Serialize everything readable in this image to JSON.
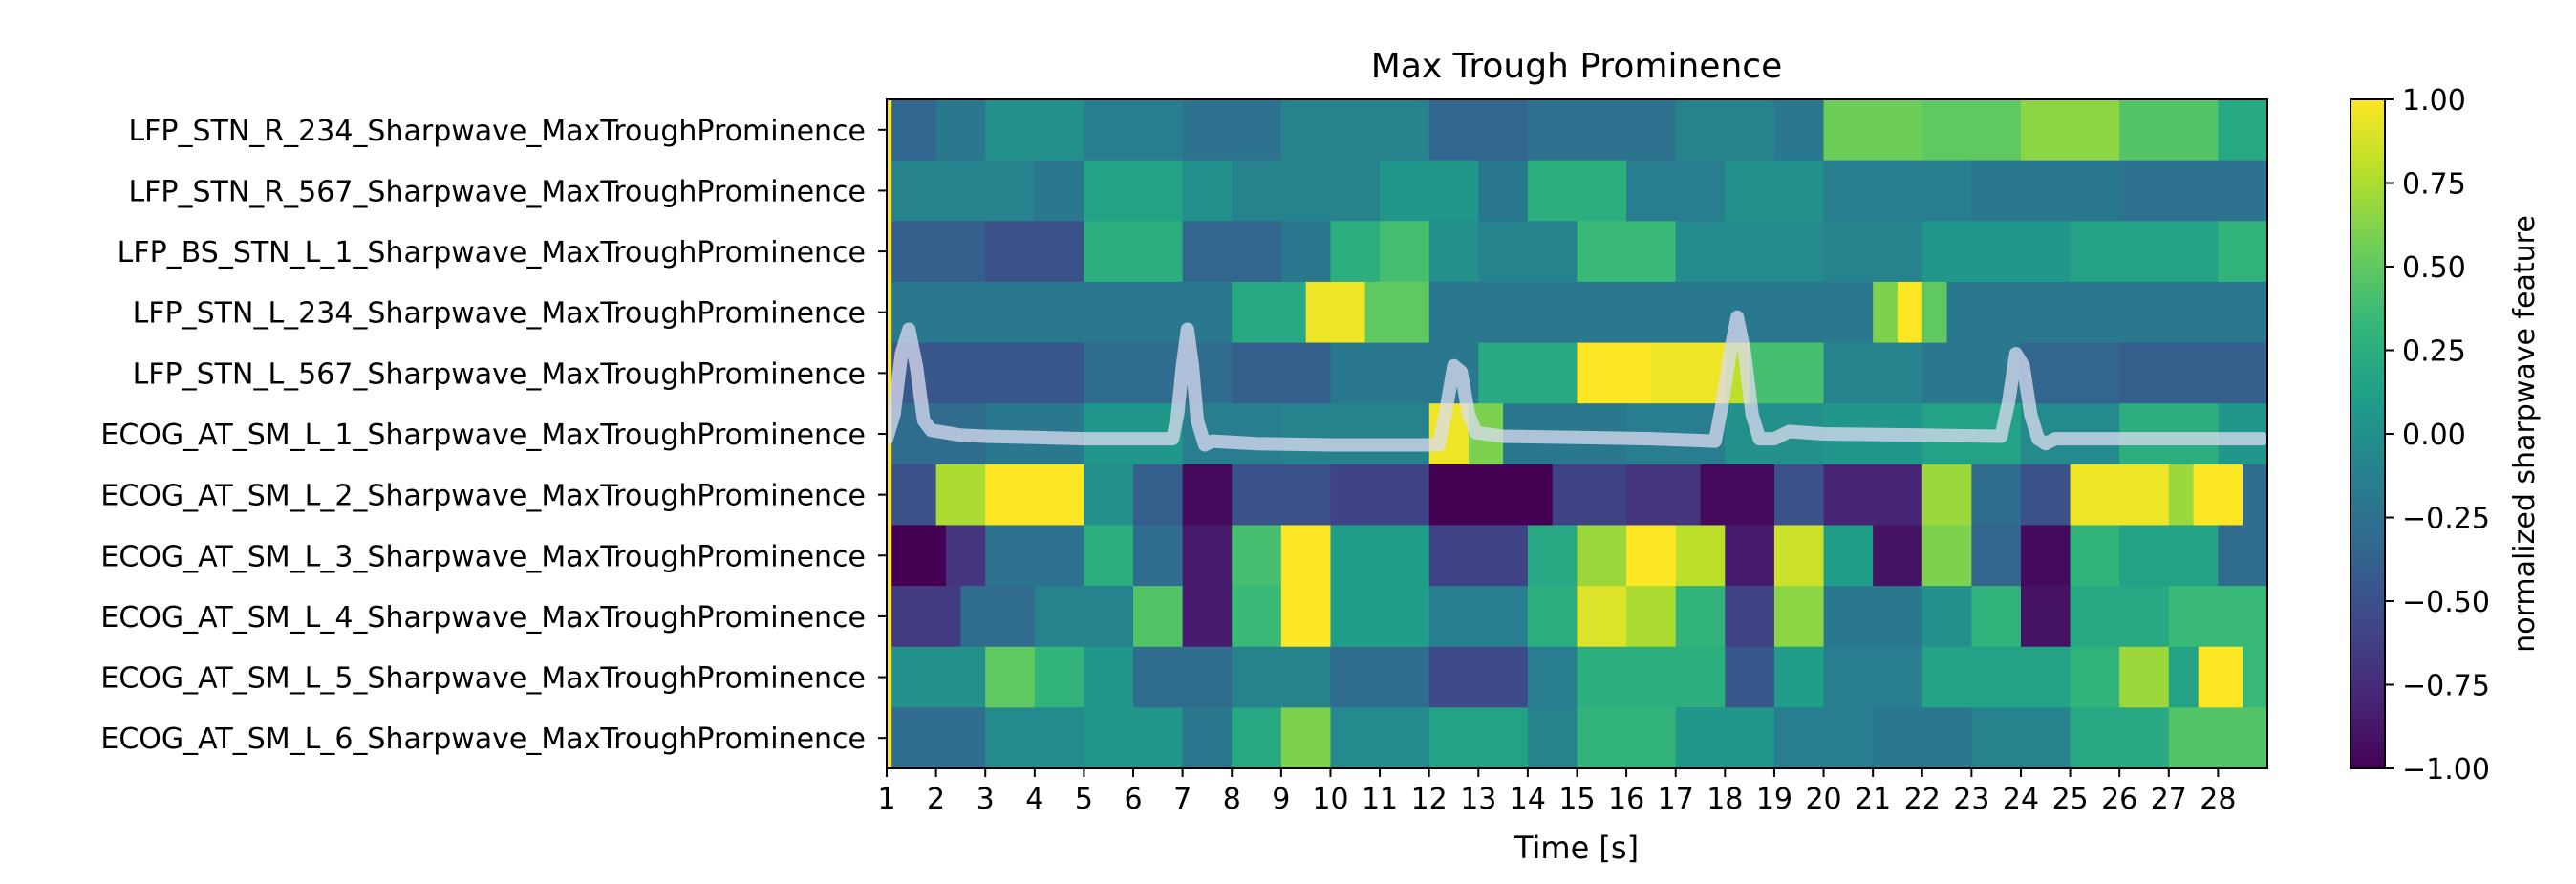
{
  "chart_data": {
    "type": "heatmap",
    "title": "Max Trough Prominence",
    "xlabel": "Time [s]",
    "ylabel": "",
    "colorbar_label": "normalized sharpwave feature",
    "colormap": "viridis",
    "vmin": -1.0,
    "vmax": 1.0,
    "xlim": [
      1,
      29
    ],
    "x_ticks": [
      1,
      2,
      3,
      4,
      5,
      6,
      7,
      8,
      9,
      10,
      11,
      12,
      13,
      14,
      15,
      16,
      17,
      18,
      19,
      20,
      21,
      22,
      23,
      24,
      25,
      26,
      27,
      28
    ],
    "colorbar_ticks": [
      1.0,
      0.75,
      0.5,
      0.25,
      0.0,
      -0.25,
      -0.5,
      -0.75,
      -1.0
    ],
    "colorbar_tick_labels": [
      "1.00",
      "0.75",
      "0.50",
      "0.25",
      "0.00",
      "−0.25",
      "−0.50",
      "−0.75",
      "−1.00"
    ],
    "rows": [
      "LFP_STN_R_234_Sharpwave_MaxTroughProminence",
      "LFP_STN_R_567_Sharpwave_MaxTroughProminence",
      "LFP_BS_STN_L_1_Sharpwave_MaxTroughProminence",
      "LFP_STN_L_234_Sharpwave_MaxTroughProminence",
      "LFP_STN_L_567_Sharpwave_MaxTroughProminence",
      "ECOG_AT_SM_L_1_Sharpwave_MaxTroughProminence",
      "ECOG_AT_SM_L_2_Sharpwave_MaxTroughProminence",
      "ECOG_AT_SM_L_3_Sharpwave_MaxTroughProminence",
      "ECOG_AT_SM_L_4_Sharpwave_MaxTroughProminence",
      "ECOG_AT_SM_L_5_Sharpwave_MaxTroughProminence",
      "ECOG_AT_SM_L_6_Sharpwave_MaxTroughProminence"
    ],
    "segments": [
      [
        [
          1,
          1.1,
          1.0
        ],
        [
          1.1,
          2,
          -0.35
        ],
        [
          2,
          3,
          -0.2
        ],
        [
          3,
          5,
          0.0
        ],
        [
          5,
          7,
          -0.15
        ],
        [
          7,
          9,
          -0.25
        ],
        [
          9,
          12,
          -0.1
        ],
        [
          12,
          14,
          -0.35
        ],
        [
          14,
          17,
          -0.25
        ],
        [
          17,
          19,
          -0.1
        ],
        [
          19,
          20,
          -0.2
        ],
        [
          20,
          22,
          0.55
        ],
        [
          22,
          24,
          0.5
        ],
        [
          24,
          26,
          0.65
        ],
        [
          26,
          28,
          0.45
        ],
        [
          28,
          29,
          0.2
        ]
      ],
      [
        [
          1,
          1.1,
          1.0
        ],
        [
          1.1,
          4,
          -0.1
        ],
        [
          4,
          5,
          -0.2
        ],
        [
          5,
          7,
          0.15
        ],
        [
          7,
          8,
          0.0
        ],
        [
          8,
          11,
          -0.1
        ],
        [
          11,
          13,
          0.05
        ],
        [
          13,
          14,
          -0.2
        ],
        [
          14,
          16,
          0.25
        ],
        [
          16,
          18,
          -0.15
        ],
        [
          18,
          20,
          0.0
        ],
        [
          20,
          23,
          -0.15
        ],
        [
          23,
          26,
          -0.2
        ],
        [
          26,
          29,
          -0.25
        ]
      ],
      [
        [
          1,
          1.1,
          1.0
        ],
        [
          1.1,
          3,
          -0.4
        ],
        [
          3,
          5,
          -0.5
        ],
        [
          5,
          7,
          0.25
        ],
        [
          7,
          9,
          -0.35
        ],
        [
          9,
          10,
          -0.2
        ],
        [
          10,
          11,
          0.25
        ],
        [
          11,
          12,
          0.4
        ],
        [
          12,
          13,
          0.0
        ],
        [
          13,
          15,
          -0.1
        ],
        [
          15,
          17,
          0.35
        ],
        [
          17,
          20,
          -0.05
        ],
        [
          20,
          22,
          -0.1
        ],
        [
          22,
          25,
          0.05
        ],
        [
          25,
          28,
          0.15
        ],
        [
          28,
          29,
          0.3
        ]
      ],
      [
        [
          1,
          1.1,
          1.0
        ],
        [
          1.1,
          8,
          -0.2
        ],
        [
          8,
          9.5,
          0.2
        ],
        [
          9.5,
          10.7,
          0.95
        ],
        [
          10.7,
          12,
          0.5
        ],
        [
          12,
          21,
          -0.2
        ],
        [
          21,
          21.5,
          0.6
        ],
        [
          21.5,
          22,
          1.0
        ],
        [
          22,
          22.5,
          0.5
        ],
        [
          22.5,
          29,
          -0.2
        ]
      ],
      [
        [
          1,
          1.1,
          1.0
        ],
        [
          1.1,
          5,
          -0.45
        ],
        [
          5,
          8,
          -0.3
        ],
        [
          8,
          10,
          -0.4
        ],
        [
          10,
          13,
          -0.2
        ],
        [
          13,
          15,
          0.2
        ],
        [
          15,
          16.5,
          1.0
        ],
        [
          16.5,
          18,
          0.95
        ],
        [
          18,
          18.5,
          0.8
        ],
        [
          18.5,
          20,
          0.4
        ],
        [
          20,
          22,
          -0.1
        ],
        [
          22,
          24,
          -0.2
        ],
        [
          24,
          26,
          -0.35
        ],
        [
          26,
          29,
          -0.4
        ]
      ],
      [
        [
          1,
          1.1,
          1.0
        ],
        [
          1.1,
          3,
          -0.3
        ],
        [
          3,
          5,
          -0.2
        ],
        [
          5,
          7,
          0.05
        ],
        [
          7,
          9,
          -0.15
        ],
        [
          9,
          12,
          -0.1
        ],
        [
          12,
          12.8,
          0.95
        ],
        [
          12.8,
          13.5,
          0.6
        ],
        [
          13.5,
          16,
          -0.2
        ],
        [
          16,
          18,
          -0.15
        ],
        [
          18,
          20,
          0.0
        ],
        [
          20,
          22,
          0.05
        ],
        [
          22,
          24,
          0.15
        ],
        [
          24,
          26,
          -0.05
        ],
        [
          26,
          28,
          0.25
        ],
        [
          28,
          29,
          0.05
        ]
      ],
      [
        [
          1,
          1.1,
          1.0
        ],
        [
          1.1,
          2,
          -0.5
        ],
        [
          2,
          3,
          0.75
        ],
        [
          3,
          5,
          1.0
        ],
        [
          5,
          6,
          0.0
        ],
        [
          6,
          7,
          -0.4
        ],
        [
          7,
          8,
          -0.95
        ],
        [
          8,
          10,
          -0.5
        ],
        [
          10,
          12,
          -0.6
        ],
        [
          12,
          14.5,
          -1.0
        ],
        [
          14.5,
          16,
          -0.6
        ],
        [
          16,
          17.5,
          -0.7
        ],
        [
          17.5,
          19,
          -0.95
        ],
        [
          19,
          20,
          -0.5
        ],
        [
          20,
          22,
          -0.8
        ],
        [
          22,
          23,
          0.7
        ],
        [
          23,
          24,
          -0.3
        ],
        [
          24,
          25,
          -0.5
        ],
        [
          25,
          27,
          0.95
        ],
        [
          27,
          27.5,
          0.7
        ],
        [
          27.5,
          28.5,
          1.0
        ],
        [
          28.5,
          29,
          -0.3
        ]
      ],
      [
        [
          1,
          1.1,
          1.0
        ],
        [
          1.1,
          2.2,
          -1.0
        ],
        [
          2.2,
          3,
          -0.7
        ],
        [
          3,
          5,
          -0.25
        ],
        [
          5,
          6,
          0.25
        ],
        [
          6,
          7,
          -0.3
        ],
        [
          7,
          8,
          -0.85
        ],
        [
          8,
          9,
          0.4
        ],
        [
          9,
          10,
          1.0
        ],
        [
          10,
          12,
          0.1
        ],
        [
          12,
          14,
          -0.6
        ],
        [
          14,
          15,
          0.2
        ],
        [
          15,
          16,
          0.7
        ],
        [
          16,
          17,
          1.0
        ],
        [
          17,
          18,
          0.8
        ],
        [
          18,
          19,
          -0.85
        ],
        [
          19,
          20,
          0.85
        ],
        [
          20,
          21,
          0.1
        ],
        [
          21,
          22,
          -0.9
        ],
        [
          22,
          23,
          0.6
        ],
        [
          23,
          24,
          -0.35
        ],
        [
          24,
          25,
          -0.95
        ],
        [
          25,
          26,
          0.3
        ],
        [
          26,
          28,
          0.15
        ],
        [
          28,
          29,
          -0.3
        ]
      ],
      [
        [
          1,
          1.1,
          1.0
        ],
        [
          1.1,
          2.5,
          -0.65
        ],
        [
          2.5,
          4,
          -0.3
        ],
        [
          4,
          6,
          -0.1
        ],
        [
          6,
          7,
          0.45
        ],
        [
          7,
          8,
          -0.85
        ],
        [
          8,
          9,
          0.35
        ],
        [
          9,
          10,
          1.0
        ],
        [
          10,
          12,
          0.1
        ],
        [
          12,
          14,
          -0.15
        ],
        [
          14,
          15,
          0.25
        ],
        [
          15,
          16,
          0.9
        ],
        [
          16,
          17,
          0.75
        ],
        [
          17,
          18,
          0.3
        ],
        [
          18,
          19,
          -0.6
        ],
        [
          19,
          20,
          0.65
        ],
        [
          20,
          22,
          -0.2
        ],
        [
          22,
          23,
          0.0
        ],
        [
          23,
          24,
          0.3
        ],
        [
          24,
          25,
          -0.9
        ],
        [
          25,
          27,
          0.2
        ],
        [
          27,
          29,
          0.35
        ]
      ],
      [
        [
          1,
          1.1,
          1.0
        ],
        [
          1.1,
          3,
          0.0
        ],
        [
          3,
          4,
          0.5
        ],
        [
          4,
          5,
          0.3
        ],
        [
          5,
          6,
          0.05
        ],
        [
          6,
          8,
          -0.3
        ],
        [
          8,
          10,
          -0.1
        ],
        [
          10,
          12,
          -0.3
        ],
        [
          12,
          14,
          -0.55
        ],
        [
          14,
          15,
          -0.15
        ],
        [
          15,
          18,
          0.25
        ],
        [
          18,
          19,
          -0.45
        ],
        [
          19,
          20,
          0.1
        ],
        [
          20,
          22,
          -0.15
        ],
        [
          22,
          25,
          0.15
        ],
        [
          25,
          26,
          0.3
        ],
        [
          26,
          27,
          0.7
        ],
        [
          27,
          27.6,
          0.15
        ],
        [
          27.6,
          28.5,
          1.0
        ],
        [
          28.5,
          29,
          0.35
        ]
      ],
      [
        [
          1,
          1.1,
          1.0
        ],
        [
          1.1,
          3,
          -0.3
        ],
        [
          3,
          5,
          -0.05
        ],
        [
          5,
          7,
          0.05
        ],
        [
          7,
          8,
          -0.2
        ],
        [
          8,
          9,
          0.2
        ],
        [
          9,
          10,
          0.6
        ],
        [
          10,
          12,
          -0.05
        ],
        [
          12,
          14,
          0.15
        ],
        [
          14,
          15,
          -0.1
        ],
        [
          15,
          17,
          0.3
        ],
        [
          17,
          19,
          0.05
        ],
        [
          19,
          21,
          -0.15
        ],
        [
          21,
          23,
          -0.2
        ],
        [
          23,
          25,
          -0.1
        ],
        [
          25,
          27,
          0.2
        ],
        [
          27,
          29,
          0.45
        ]
      ]
    ],
    "overlay": {
      "name": "",
      "color": "#dcdcf0",
      "baseline": -0.06,
      "points": [
        [
          1.0,
          -0.1
        ],
        [
          1.15,
          0.1
        ],
        [
          1.3,
          0.6
        ],
        [
          1.45,
          0.8
        ],
        [
          1.6,
          0.5
        ],
        [
          1.75,
          0.05
        ],
        [
          1.9,
          -0.03
        ],
        [
          2.5,
          -0.07
        ],
        [
          3.0,
          -0.08
        ],
        [
          4.0,
          -0.09
        ],
        [
          5.0,
          -0.1
        ],
        [
          6.0,
          -0.1
        ],
        [
          6.8,
          -0.1
        ],
        [
          6.9,
          0.1
        ],
        [
          7.0,
          0.5
        ],
        [
          7.1,
          0.8
        ],
        [
          7.2,
          0.5
        ],
        [
          7.3,
          0.05
        ],
        [
          7.45,
          -0.15
        ],
        [
          7.6,
          -0.12
        ],
        [
          8.5,
          -0.14
        ],
        [
          10,
          -0.15
        ],
        [
          11.5,
          -0.15
        ],
        [
          12.2,
          -0.15
        ],
        [
          12.35,
          0.15
        ],
        [
          12.5,
          0.5
        ],
        [
          12.65,
          0.45
        ],
        [
          12.8,
          0.1
        ],
        [
          12.95,
          -0.05
        ],
        [
          13.5,
          -0.08
        ],
        [
          15,
          -0.09
        ],
        [
          16.5,
          -0.1
        ],
        [
          17.8,
          -0.12
        ],
        [
          17.95,
          0.2
        ],
        [
          18.1,
          0.6
        ],
        [
          18.25,
          0.9
        ],
        [
          18.4,
          0.6
        ],
        [
          18.55,
          0.1
        ],
        [
          18.7,
          -0.1
        ],
        [
          19,
          -0.1
        ],
        [
          19.3,
          -0.04
        ],
        [
          20,
          -0.06
        ],
        [
          22,
          -0.07
        ],
        [
          23.6,
          -0.08
        ],
        [
          23.75,
          0.2
        ],
        [
          23.9,
          0.6
        ],
        [
          24.05,
          0.5
        ],
        [
          24.2,
          0.1
        ],
        [
          24.35,
          -0.1
        ],
        [
          24.5,
          -0.14
        ],
        [
          24.7,
          -0.1
        ],
        [
          26,
          -0.1
        ],
        [
          28,
          -0.1
        ],
        [
          28.9,
          -0.1
        ]
      ]
    }
  }
}
